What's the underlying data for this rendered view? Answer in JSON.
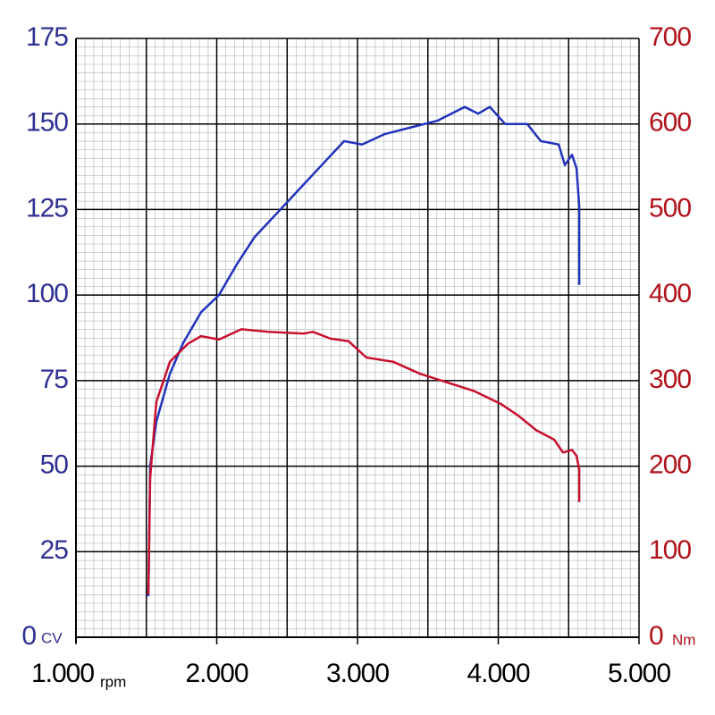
{
  "chart_data": {
    "type": "line",
    "x_unit": "rpm",
    "y_unit": "CV",
    "y2_unit": "Nm",
    "xlim": [
      1000,
      5000
    ],
    "xticks": [
      {
        "value": 1000,
        "label": "1.000"
      },
      {
        "value": 2000,
        "label": "2.000"
      },
      {
        "value": 3000,
        "label": "3.000"
      },
      {
        "value": 4000,
        "label": "4.000"
      },
      {
        "value": 5000,
        "label": "5.000"
      }
    ],
    "x_major_grid": [
      1500,
      2500,
      3500,
      4500
    ],
    "ylim": [
      0,
      175
    ],
    "yticks": [
      0,
      25,
      50,
      75,
      100,
      125,
      150,
      175
    ],
    "y_color": "#2e3192",
    "y2lim": [
      0,
      700
    ],
    "y2ticks": [
      0,
      100,
      200,
      300,
      400,
      500,
      600,
      700
    ],
    "y2_color": "#b1121b",
    "grid": true,
    "series": [
      {
        "color": "#2233bb",
        "x": [
          1514,
          1527,
          1571,
          1667,
          1762,
          1889,
          2016,
          2143,
          2270,
          2429,
          2587,
          2746,
          2905,
          3032,
          3190,
          3381,
          3571,
          3762,
          3857,
          3940,
          4048,
          4206,
          4302,
          4429,
          4473,
          4524,
          4556,
          4575,
          4575
        ],
        "values": [
          12,
          50,
          63,
          77,
          86,
          95,
          100,
          109,
          117,
          124,
          131,
          138,
          145,
          144,
          147,
          149,
          151,
          155,
          153,
          155,
          150,
          150,
          145,
          144,
          138,
          141,
          137,
          126,
          103
        ]
      },
      {
        "color": "#c8102e",
        "axis": "y2",
        "x": [
          1514,
          1527,
          1571,
          1667,
          1794,
          1889,
          2016,
          2175,
          2365,
          2619,
          2683,
          2810,
          2937,
          3063,
          3254,
          3444,
          3635,
          3825,
          4016,
          4143,
          4270,
          4397,
          4460,
          4524,
          4556,
          4575,
          4575
        ],
        "values": [
          50,
          186,
          275,
          322,
          343,
          352,
          348,
          360,
          357,
          355,
          357,
          349,
          346,
          327,
          322,
          308,
          298,
          288,
          273,
          259,
          242,
          231,
          216,
          219,
          212,
          196,
          158
        ]
      }
    ]
  }
}
